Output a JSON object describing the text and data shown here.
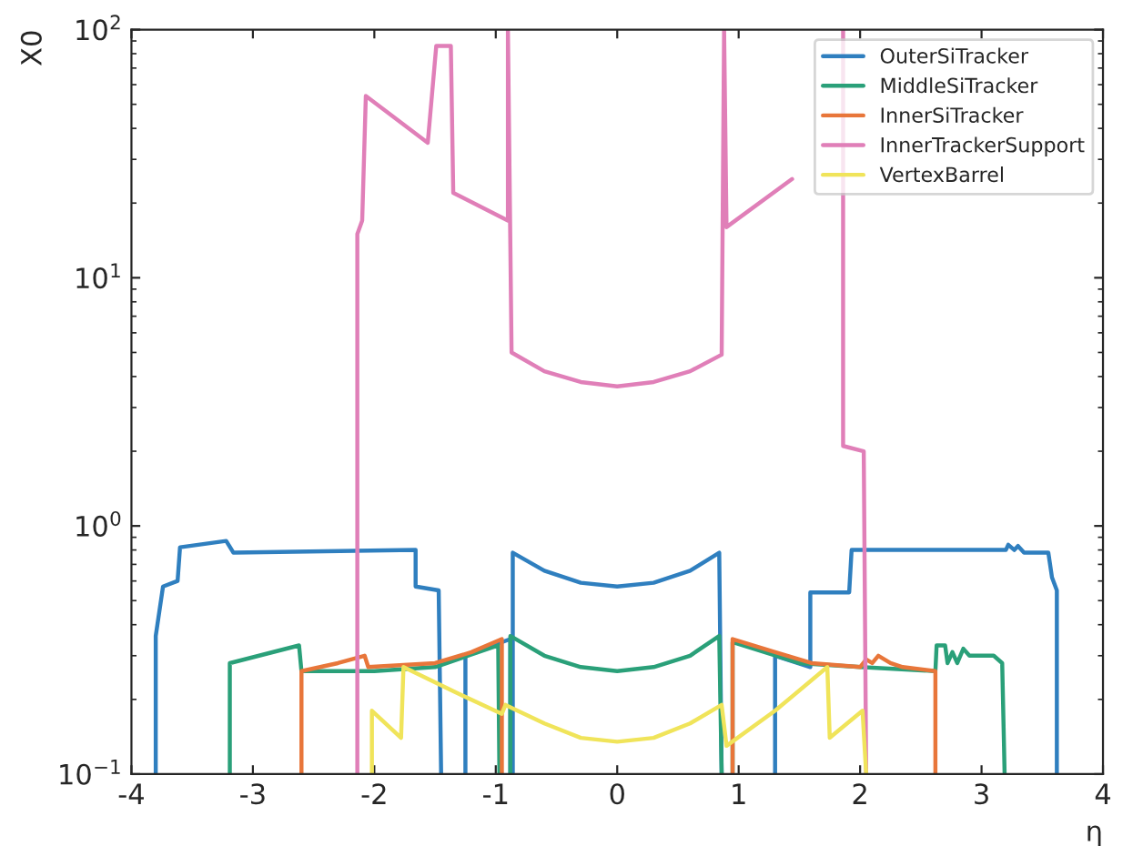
{
  "chart_data": {
    "type": "line",
    "xlabel": "η",
    "ylabel": "X0",
    "log": "y",
    "xlim": [
      -4,
      4
    ],
    "ylim": [
      0.1,
      100
    ],
    "xticks": [
      -4,
      -3,
      -2,
      -1,
      0,
      1,
      2,
      3,
      4
    ],
    "yticks": [
      {
        "value": 0.1,
        "label": "10$^{−1}$"
      },
      {
        "value": 1,
        "label": "10$^{0}$"
      },
      {
        "value": 10,
        "label": "10$^{1}$"
      },
      {
        "value": 100,
        "label": "10$^{2}$"
      }
    ],
    "grid": false,
    "legend": "top right",
    "marker": "none",
    "line_style": "solid",
    "series": [
      {
        "name": "OuterSiTracker",
        "color": "#2f7fbf",
        "x": [
          -3.8,
          -3.8,
          -3.74,
          -3.62,
          -3.6,
          -3.22,
          -3.16,
          -1.66,
          -1.66,
          -1.47,
          -1.45,
          -1.35,
          -1.25,
          -1.25,
          -0.88,
          -0.88,
          -0.87,
          -0.86,
          -0.86,
          -0.6,
          -0.3,
          0,
          0.3,
          0.6,
          0.84,
          0.86,
          1.1,
          1.3,
          1.3,
          1.59,
          1.59,
          1.91,
          1.93,
          3.2,
          3.22,
          3.27,
          3.3,
          3.35,
          3.55,
          3.58,
          3.62,
          3.62
        ],
        "values": [
          0.1,
          0.36,
          0.57,
          0.6,
          0.82,
          0.87,
          0.78,
          0.8,
          0.57,
          0.55,
          0.1,
          null,
          0.1,
          0.3,
          0.35,
          0.1,
          null,
          0.1,
          0.78,
          0.66,
          0.59,
          0.57,
          0.59,
          0.66,
          0.78,
          0.1,
          null,
          0.1,
          0.3,
          0.27,
          0.54,
          0.54,
          0.8,
          0.8,
          0.84,
          0.8,
          0.83,
          0.78,
          0.78,
          0.62,
          0.55,
          0.1
        ]
      },
      {
        "name": "MiddleSiTracker",
        "color": "#2aa079",
        "x": [
          -3.19,
          -3.19,
          -2.62,
          -2.6,
          -2.0,
          -1.5,
          -0.98,
          -0.97,
          -0.93,
          -0.88,
          -0.88,
          -0.6,
          -0.3,
          0,
          0.3,
          0.6,
          0.84,
          0.86,
          0.9,
          0.95,
          0.95,
          1.5,
          2.0,
          2.62,
          2.63,
          2.7,
          2.72,
          2.76,
          2.8,
          2.85,
          2.9,
          3.1,
          3.17,
          3.19
        ],
        "values": [
          0.1,
          0.28,
          0.33,
          0.26,
          0.26,
          0.27,
          0.33,
          0.1,
          null,
          0.1,
          0.36,
          0.3,
          0.27,
          0.26,
          0.27,
          0.3,
          0.36,
          0.1,
          null,
          0.1,
          0.34,
          0.28,
          0.27,
          0.26,
          0.33,
          0.33,
          0.28,
          0.31,
          0.28,
          0.32,
          0.3,
          0.3,
          0.28,
          0.1
        ]
      },
      {
        "name": "InnerSiTracker",
        "color": "#e8763a",
        "x": [
          -2.6,
          -2.6,
          -2.3,
          -2.08,
          -2.05,
          -1.5,
          -1.2,
          -0.95,
          -0.95,
          0,
          0.95,
          0.95,
          1.3,
          1.6,
          2.0,
          2.05,
          2.1,
          2.15,
          2.25,
          2.35,
          2.62,
          2.62
        ],
        "values": [
          0.1,
          0.26,
          0.28,
          0.3,
          0.27,
          0.28,
          0.31,
          0.35,
          0.1,
          null,
          0.1,
          0.35,
          0.31,
          0.28,
          0.27,
          0.29,
          0.28,
          0.3,
          0.28,
          0.27,
          0.26,
          0.1
        ]
      },
      {
        "name": "InnerTrackerSupport",
        "color": "#e07fb8",
        "x": [
          -2.14,
          -2.14,
          -2.1,
          -2.07,
          -1.56,
          -1.49,
          -1.37,
          -1.35,
          -0.9,
          -0.9,
          -0.87,
          -0.6,
          -0.3,
          0,
          0.3,
          0.6,
          0.86,
          0.88,
          0.9,
          1.44,
          1.6,
          1.86,
          1.86,
          2.03,
          2.05
        ],
        "values": [
          0.1,
          15,
          17,
          54,
          35,
          86,
          86,
          22,
          17,
          100,
          5,
          4.2,
          3.8,
          3.65,
          3.8,
          4.2,
          4.9,
          100,
          16,
          25,
          null,
          100,
          2.1,
          2.0,
          0.1
        ]
      },
      {
        "name": "VertexBarrel",
        "color": "#f0e45a",
        "x": [
          -2.02,
          -2.02,
          -1.78,
          -1.76,
          -1.3,
          -0.95,
          -0.92,
          -0.6,
          -0.3,
          0,
          0.3,
          0.6,
          0.86,
          0.9,
          1.3,
          1.73,
          1.75,
          2.02,
          2.05
        ],
        "values": [
          0.1,
          0.18,
          0.14,
          0.27,
          0.21,
          0.175,
          0.19,
          0.16,
          0.14,
          0.135,
          0.14,
          0.16,
          0.19,
          0.13,
          0.18,
          0.27,
          0.14,
          0.18,
          0.1
        ]
      }
    ]
  }
}
